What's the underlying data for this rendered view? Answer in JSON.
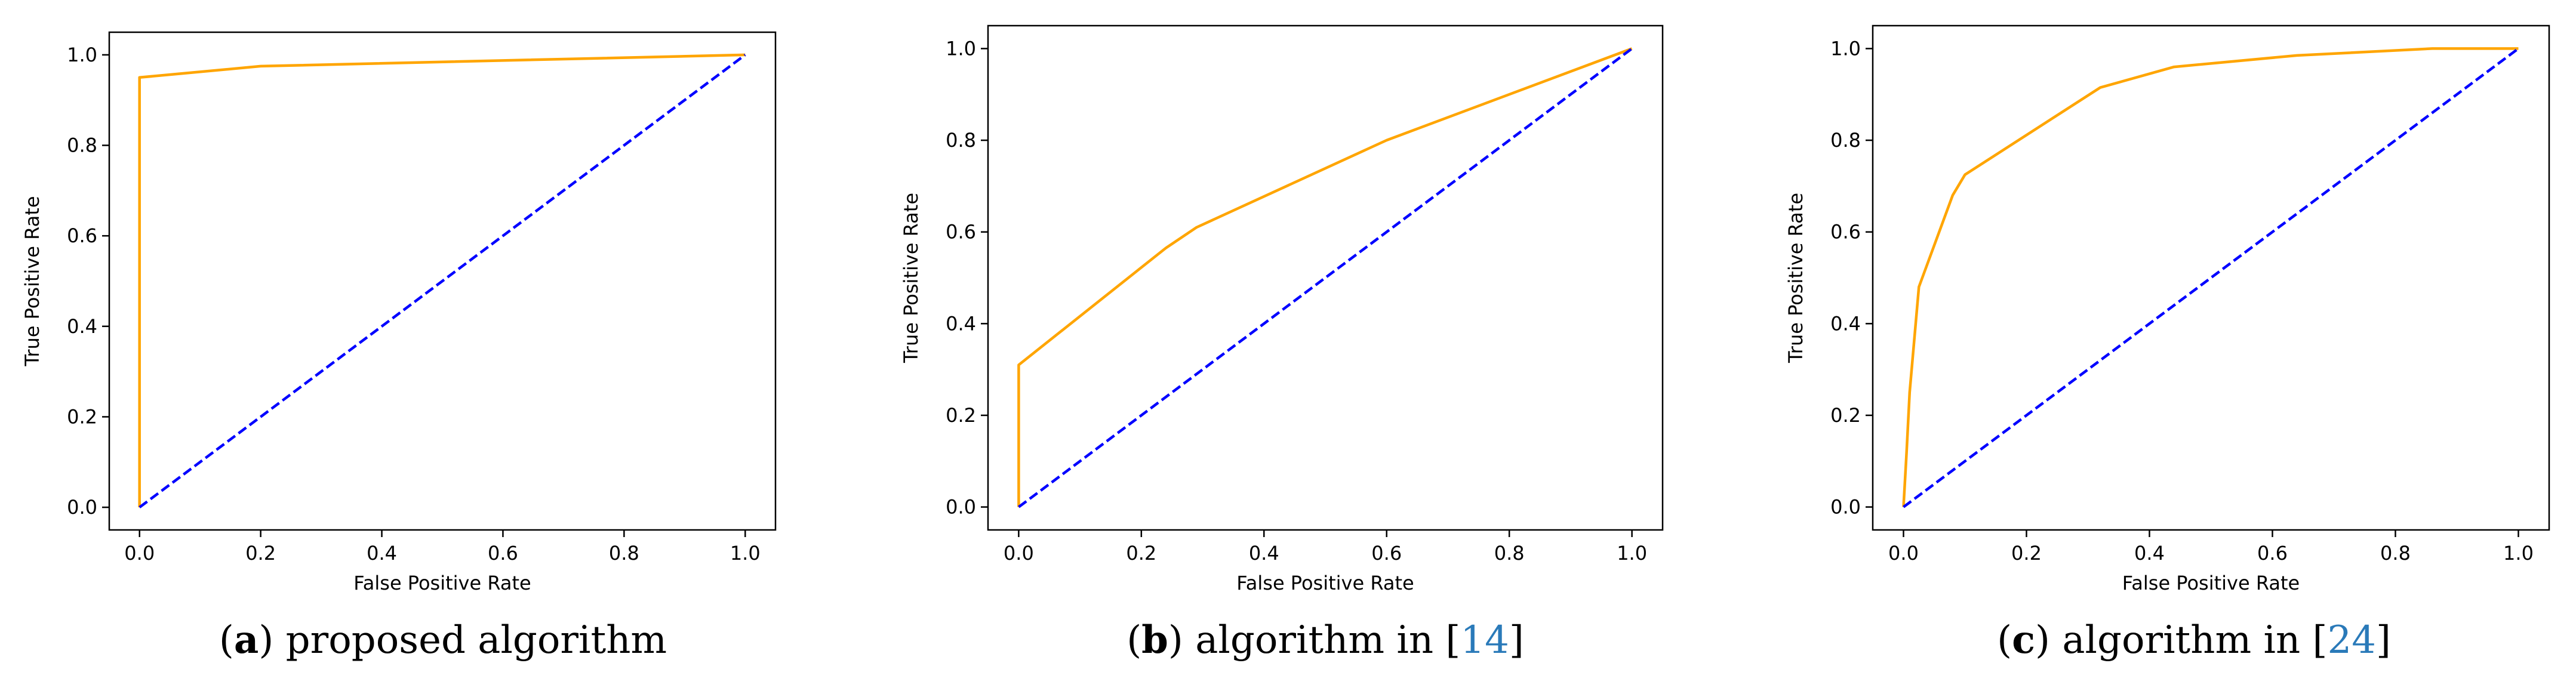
{
  "colors": {
    "roc_curve": "#ffa500",
    "chance_line": "#0000ff",
    "axes": "#000000",
    "citation": "#2a7ab9"
  },
  "chart_data": [
    {
      "type": "line",
      "panel": "a",
      "xlabel": "False Positive Rate",
      "ylabel": "True Positive Rate",
      "xlim": [
        -0.05,
        1.05
      ],
      "ylim": [
        -0.05,
        1.05
      ],
      "xticks": [
        "0.0",
        "0.2",
        "0.4",
        "0.6",
        "0.8",
        "1.0"
      ],
      "yticks": [
        "0.0",
        "0.2",
        "0.4",
        "0.6",
        "0.8",
        "1.0"
      ],
      "series": [
        {
          "name": "ROC curve",
          "style": "solid",
          "x": [
            0.0,
            0.0,
            0.2,
            1.0
          ],
          "y": [
            0.0,
            0.95,
            0.975,
            1.0
          ]
        },
        {
          "name": "chance",
          "style": "dashed",
          "x": [
            0.0,
            1.0
          ],
          "y": [
            0.0,
            1.0
          ]
        }
      ],
      "caption": {
        "label": "a",
        "text": "proposed algorithm",
        "ref": ""
      }
    },
    {
      "type": "line",
      "panel": "b",
      "xlabel": "False Positive Rate",
      "ylabel": "True Positive Rate",
      "xlim": [
        -0.05,
        1.05
      ],
      "ylim": [
        -0.05,
        1.05
      ],
      "xticks": [
        "0.0",
        "0.2",
        "0.4",
        "0.6",
        "0.8",
        "1.0"
      ],
      "yticks": [
        "0.0",
        "0.2",
        "0.4",
        "0.6",
        "0.8",
        "1.0"
      ],
      "series": [
        {
          "name": "ROC curve",
          "style": "solid",
          "x": [
            0.0,
            0.0,
            0.24,
            0.29,
            0.6,
            1.0
          ],
          "y": [
            0.0,
            0.31,
            0.565,
            0.61,
            0.8,
            1.0
          ]
        },
        {
          "name": "chance",
          "style": "dashed",
          "x": [
            0.0,
            1.0
          ],
          "y": [
            0.0,
            1.0
          ]
        }
      ],
      "caption": {
        "label": "b",
        "text": "algorithm in [",
        "ref": "14",
        "suffix": "]"
      }
    },
    {
      "type": "line",
      "panel": "c",
      "xlabel": "False Positive Rate",
      "ylabel": "True Positive Rate",
      "xlim": [
        -0.05,
        1.05
      ],
      "ylim": [
        -0.05,
        1.05
      ],
      "xticks": [
        "0.0",
        "0.2",
        "0.4",
        "0.6",
        "0.8",
        "1.0"
      ],
      "yticks": [
        "0.0",
        "0.2",
        "0.4",
        "0.6",
        "0.8",
        "1.0"
      ],
      "series": [
        {
          "name": "ROC curve",
          "style": "solid",
          "x": [
            0.0,
            0.005,
            0.01,
            0.025,
            0.08,
            0.1,
            0.32,
            0.44,
            0.64,
            0.86,
            1.0
          ],
          "y": [
            0.0,
            0.12,
            0.25,
            0.48,
            0.68,
            0.725,
            0.915,
            0.96,
            0.985,
            1.0,
            1.0
          ]
        },
        {
          "name": "chance",
          "style": "dashed",
          "x": [
            0.0,
            1.0
          ],
          "y": [
            0.0,
            1.0
          ]
        }
      ],
      "caption": {
        "label": "c",
        "text": "algorithm in [",
        "ref": "24",
        "suffix": "]"
      }
    }
  ]
}
